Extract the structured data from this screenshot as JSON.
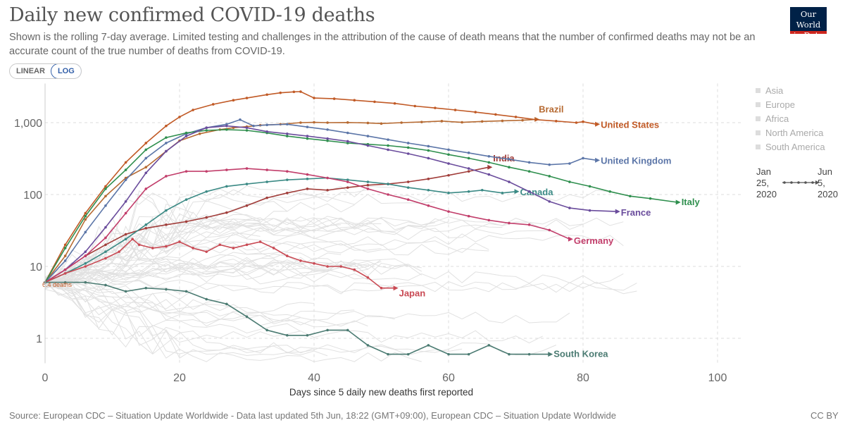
{
  "header": {
    "title": "Daily new confirmed COVID-19 deaths",
    "subtitle": "Shown is the rolling 7-day average. Limited testing and challenges in the attribution of the cause of death means that the number of confirmed deaths may not be an accurate count of the true number of deaths from COVID-19.",
    "logo_line1": "Our World",
    "logo_line2": "in Data"
  },
  "toggle": {
    "linear_label": "LINEAR",
    "log_label": "LOG",
    "selected": "LOG"
  },
  "legend": {
    "regions": [
      "Asia",
      "Europe",
      "Africa",
      "North America",
      "South America"
    ],
    "start_date": [
      "Jan",
      "25,",
      "2020"
    ],
    "end_date": [
      "Jun",
      "5,",
      "2020"
    ]
  },
  "footer": {
    "source": "Source: European CDC – Situation Update Worldwide - Data last updated 5th Jun, 18:22 (GMT+09:00), European CDC – Situation Update Worldwide",
    "license": "CC BY"
  },
  "chart_data": {
    "type": "line",
    "title": "Daily new confirmed COVID-19 deaths",
    "xlabel": "Days since 5 daily new deaths first reported",
    "ylabel": "",
    "yscale": "log",
    "xlim": [
      0,
      100
    ],
    "ylim": [
      0.45,
      3500
    ],
    "x_ticks": [
      0,
      20,
      40,
      60,
      80,
      100
    ],
    "x_tick_labels": [
      "0",
      "20",
      "40",
      "60",
      "80",
      "100"
    ],
    "y_ticks": [
      1,
      10,
      100,
      1000
    ],
    "y_tick_labels": [
      "1",
      "10",
      "100",
      "1,000"
    ],
    "start_annotation": "6.4 deaths",
    "series": [
      {
        "name": "Brazil",
        "color": "#b66a32",
        "x": [
          0,
          3,
          6,
          9,
          12,
          15,
          18,
          20,
          23,
          26,
          28,
          30,
          32,
          35,
          38,
          40,
          42,
          45,
          48,
          50,
          53,
          56,
          59,
          62,
          65,
          68,
          71,
          73
        ],
        "values": [
          6,
          14,
          45,
          95,
          170,
          240,
          400,
          560,
          700,
          800,
          850,
          880,
          920,
          950,
          1000,
          1010,
          1000,
          1005,
          990,
          970,
          1000,
          1020,
          1050,
          1010,
          1040,
          1060,
          1080,
          1110
        ]
      },
      {
        "name": "United States",
        "color": "#c15a26",
        "x": [
          0,
          3,
          6,
          9,
          12,
          15,
          18,
          20,
          22,
          25,
          28,
          30,
          33,
          35,
          37,
          38,
          40,
          43,
          46,
          49,
          52,
          55,
          58,
          61,
          64,
          67,
          70,
          73,
          76,
          79,
          80,
          82
        ],
        "values": [
          6,
          20,
          55,
          130,
          280,
          520,
          900,
          1200,
          1500,
          1800,
          2050,
          2200,
          2450,
          2600,
          2680,
          2700,
          2200,
          2150,
          2050,
          1950,
          1850,
          1700,
          1600,
          1500,
          1400,
          1300,
          1200,
          1100,
          1050,
          1000,
          1030,
          950
        ]
      },
      {
        "name": "India",
        "color": "#a13d3a",
        "x": [
          0,
          3,
          6,
          9,
          12,
          15,
          18,
          21,
          24,
          27,
          30,
          33,
          36,
          39,
          42,
          45,
          48,
          51,
          54,
          57,
          60,
          63,
          66
        ],
        "values": [
          6,
          9,
          14,
          20,
          28,
          34,
          38,
          42,
          48,
          56,
          70,
          90,
          105,
          120,
          115,
          125,
          135,
          140,
          150,
          165,
          185,
          210,
          240
        ]
      },
      {
        "name": "United Kingdom",
        "color": "#5c76a8",
        "x": [
          0,
          3,
          6,
          9,
          12,
          15,
          18,
          21,
          24,
          27,
          29,
          31,
          33,
          36,
          39,
          42,
          45,
          48,
          51,
          54,
          57,
          60,
          63,
          66,
          69,
          72,
          75,
          78,
          80,
          82
        ],
        "values": [
          6,
          12,
          30,
          70,
          160,
          320,
          520,
          700,
          850,
          950,
          1100,
          900,
          930,
          950,
          870,
          800,
          720,
          650,
          580,
          520,
          470,
          420,
          380,
          340,
          310,
          280,
          260,
          270,
          320,
          300
        ]
      },
      {
        "name": "Canada",
        "color": "#3b8a85",
        "x": [
          0,
          3,
          6,
          9,
          12,
          15,
          18,
          21,
          24,
          27,
          30,
          33,
          36,
          39,
          42,
          45,
          48,
          51,
          54,
          57,
          60,
          63,
          65,
          68,
          70
        ],
        "values": [
          6,
          8,
          11,
          16,
          24,
          38,
          60,
          85,
          110,
          130,
          140,
          150,
          160,
          165,
          170,
          160,
          150,
          140,
          125,
          115,
          105,
          110,
          115,
          105,
          110
        ]
      },
      {
        "name": "Italy",
        "color": "#2f8f4e",
        "x": [
          0,
          3,
          6,
          9,
          12,
          15,
          18,
          21,
          24,
          27,
          30,
          33,
          36,
          39,
          42,
          45,
          48,
          51,
          54,
          57,
          60,
          63,
          66,
          69,
          72,
          75,
          78,
          81,
          84,
          87,
          90,
          94
        ],
        "values": [
          6,
          18,
          50,
          120,
          220,
          420,
          620,
          720,
          780,
          800,
          780,
          720,
          650,
          600,
          560,
          520,
          500,
          480,
          450,
          410,
          360,
          320,
          280,
          240,
          210,
          180,
          150,
          130,
          110,
          95,
          88,
          78
        ]
      },
      {
        "name": "France",
        "color": "#6a4c9c",
        "x": [
          0,
          3,
          6,
          9,
          12,
          15,
          18,
          21,
          24,
          27,
          30,
          33,
          36,
          39,
          42,
          45,
          48,
          51,
          54,
          57,
          60,
          63,
          66,
          69,
          72,
          75,
          78,
          81,
          85
        ],
        "values": [
          6,
          9,
          16,
          35,
          80,
          200,
          400,
          650,
          850,
          900,
          850,
          750,
          700,
          650,
          600,
          550,
          480,
          420,
          370,
          320,
          270,
          230,
          190,
          150,
          110,
          80,
          65,
          60,
          58
        ]
      },
      {
        "name": "Germany",
        "color": "#c23e6b",
        "x": [
          0,
          3,
          6,
          9,
          12,
          15,
          18,
          21,
          24,
          27,
          30,
          33,
          36,
          39,
          42,
          45,
          48,
          51,
          54,
          57,
          60,
          63,
          66,
          69,
          72,
          75,
          78
        ],
        "values": [
          6,
          9,
          14,
          25,
          55,
          120,
          180,
          210,
          210,
          220,
          230,
          220,
          210,
          190,
          170,
          150,
          120,
          100,
          85,
          70,
          58,
          50,
          44,
          40,
          38,
          32,
          24
        ]
      },
      {
        "name": "Japan",
        "color": "#c94a54",
        "x": [
          0,
          3,
          6,
          9,
          11,
          13,
          14,
          16,
          18,
          20,
          22,
          24,
          26,
          28,
          30,
          32,
          34,
          36,
          38,
          40,
          42,
          44,
          46,
          48,
          50,
          52
        ],
        "values": [
          6,
          8,
          10,
          13,
          16,
          24,
          20,
          18,
          19,
          22,
          18,
          16,
          20,
          18,
          20,
          22,
          18,
          14,
          12,
          11,
          10,
          10,
          9,
          7,
          5,
          5
        ]
      },
      {
        "name": "South Korea",
        "color": "#4b7b72",
        "x": [
          0,
          3,
          6,
          9,
          12,
          15,
          18,
          21,
          24,
          27,
          30,
          33,
          36,
          39,
          42,
          45,
          48,
          51,
          54,
          57,
          60,
          63,
          66,
          69,
          72,
          75
        ],
        "values": [
          6,
          6,
          6,
          5.5,
          4.5,
          5,
          4.8,
          4.5,
          3.5,
          3,
          2,
          1.3,
          1.1,
          1.1,
          1.3,
          1.3,
          0.8,
          0.6,
          0.6,
          0.8,
          0.6,
          0.6,
          0.8,
          0.6,
          0.6,
          0.6
        ]
      }
    ]
  }
}
